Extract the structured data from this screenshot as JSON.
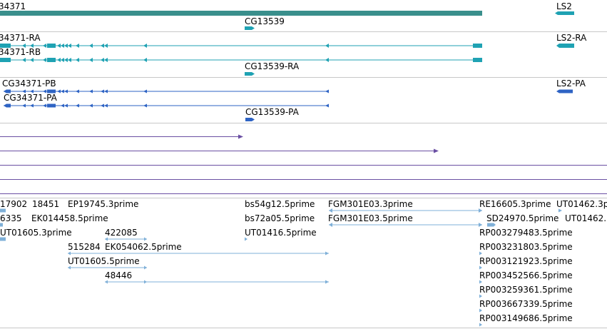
{
  "colors": {
    "gene": "#3a8f8c",
    "transcript": "#1fa2b3",
    "protein": "#2e63c4",
    "alignment": "#6a4fa3",
    "est": "#7fb0d8",
    "separator": "#c8c8c8",
    "text": "#000000"
  },
  "tracks": {
    "genes": [
      {
        "label": "34371"
      },
      {
        "label": "LS2"
      },
      {
        "label": "CG13539"
      }
    ],
    "transcripts": [
      {
        "label": "34371-RA"
      },
      {
        "label": "34371-RB"
      },
      {
        "label": "LS2-RA"
      },
      {
        "label": "CG13539-RA"
      }
    ],
    "proteins": [
      {
        "label": "CG34371-PB"
      },
      {
        "label": "CG34371-PA"
      },
      {
        "label": "LS2-PA"
      },
      {
        "label": "CG13539-PA"
      }
    ],
    "est_labels": [
      "17902",
      "18451",
      "EP19745.3prime",
      "bs54g12.5prime",
      "FGM301E03.3prime",
      "RE16605.3prime",
      "UT01462.3p",
      "6335",
      "EK014458.5prime",
      "bs72a05.5prime",
      "FGM301E03.5prime",
      "SD24970.5prime",
      "UT01462.",
      "UT01605.3prime",
      "UT01416.5prime",
      "RP003279483.5prime",
      "422085",
      "515284",
      "EK054062.5prime",
      "RP003231803.5prime",
      "UT01605.5prime",
      "RP003121923.5prime",
      "48446",
      "RP003452566.5prime",
      "RP003259361.5prime",
      "RP003667339.5prime",
      "RP003149686.5prime"
    ]
  }
}
